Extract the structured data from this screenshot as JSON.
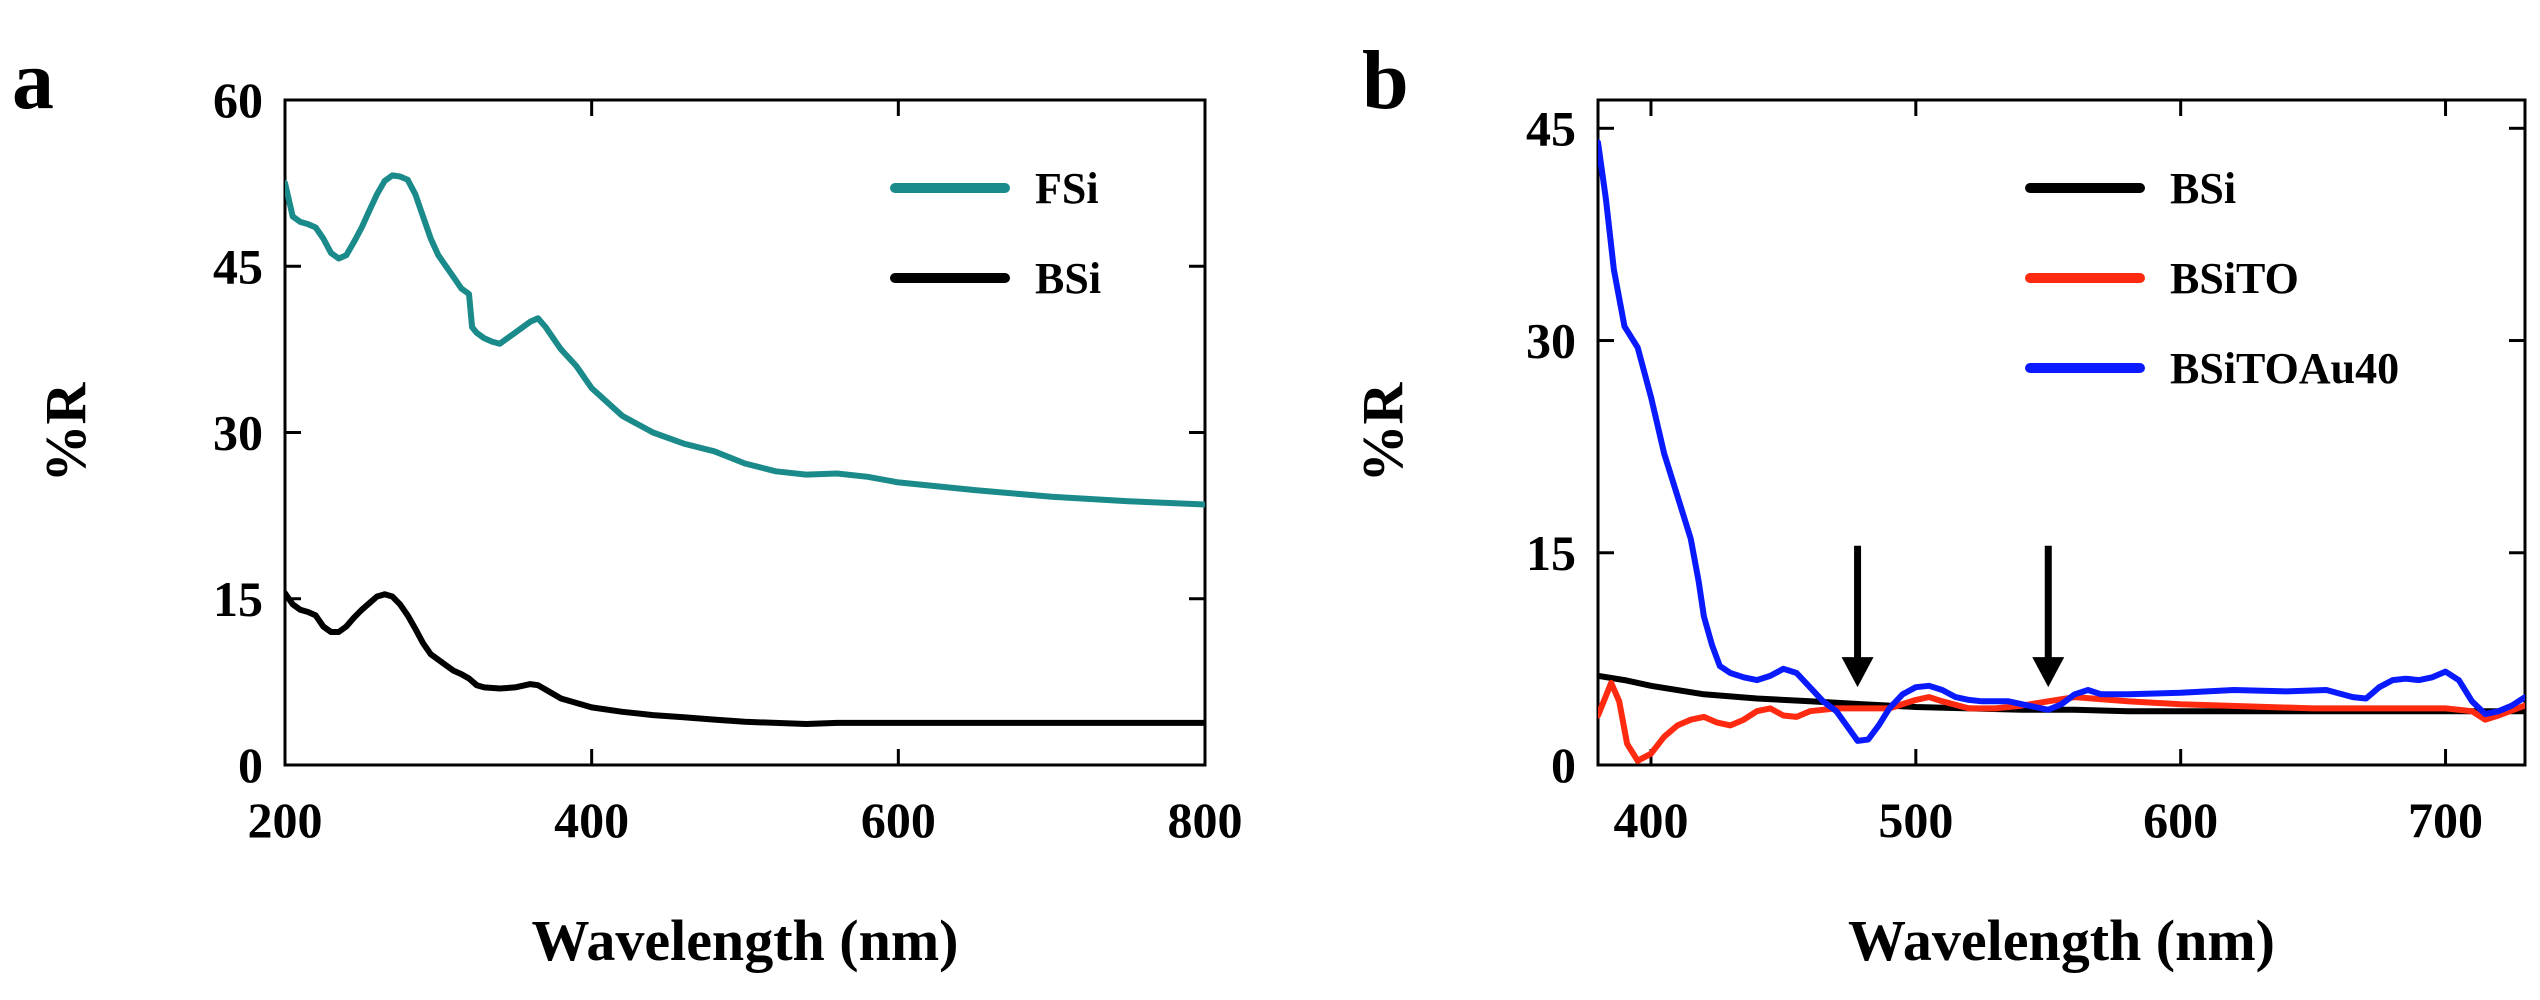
{
  "chart_data": [
    {
      "panel": "a",
      "type": "line",
      "xlabel": "Wavelength (nm)",
      "ylabel": "%R",
      "xlim": [
        200,
        800
      ],
      "ylim": [
        0,
        60
      ],
      "xticks": [
        200,
        400,
        600,
        800
      ],
      "yticks": [
        0,
        15,
        30,
        45,
        60
      ],
      "legend_position": "top-right",
      "series": [
        {
          "name": "FSi",
          "color": "#1a8a8a",
          "points": [
            [
              200,
              52.5
            ],
            [
              205,
              49.5
            ],
            [
              210,
              49
            ],
            [
              215,
              48.8
            ],
            [
              220,
              48.5
            ],
            [
              225,
              47.5
            ],
            [
              230,
              46.2
            ],
            [
              235,
              45.7
            ],
            [
              240,
              46
            ],
            [
              245,
              47.2
            ],
            [
              250,
              48.5
            ],
            [
              255,
              50
            ],
            [
              260,
              51.5
            ],
            [
              265,
              52.7
            ],
            [
              270,
              53.2
            ],
            [
              275,
              53.1
            ],
            [
              280,
              52.8
            ],
            [
              285,
              51.5
            ],
            [
              290,
              49.5
            ],
            [
              295,
              47.5
            ],
            [
              300,
              46
            ],
            [
              305,
              45
            ],
            [
              310,
              44
            ],
            [
              315,
              43
            ],
            [
              320,
              42.5
            ],
            [
              322,
              39.5
            ],
            [
              325,
              39
            ],
            [
              330,
              38.5
            ],
            [
              335,
              38.2
            ],
            [
              340,
              38
            ],
            [
              345,
              38.5
            ],
            [
              350,
              39
            ],
            [
              355,
              39.5
            ],
            [
              360,
              40
            ],
            [
              365,
              40.3
            ],
            [
              370,
              39.5
            ],
            [
              375,
              38.5
            ],
            [
              380,
              37.5
            ],
            [
              390,
              36
            ],
            [
              400,
              34
            ],
            [
              420,
              31.5
            ],
            [
              440,
              30
            ],
            [
              460,
              29
            ],
            [
              480,
              28.3
            ],
            [
              500,
              27.2
            ],
            [
              520,
              26.5
            ],
            [
              540,
              26.2
            ],
            [
              560,
              26.3
            ],
            [
              580,
              26
            ],
            [
              600,
              25.5
            ],
            [
              650,
              24.8
            ],
            [
              700,
              24.2
            ],
            [
              750,
              23.8
            ],
            [
              800,
              23.5
            ]
          ]
        },
        {
          "name": "BSi",
          "color": "#000000",
          "points": [
            [
              200,
              15.5
            ],
            [
              205,
              14.5
            ],
            [
              210,
              14
            ],
            [
              215,
              13.8
            ],
            [
              220,
              13.5
            ],
            [
              225,
              12.5
            ],
            [
              230,
              12
            ],
            [
              235,
              12
            ],
            [
              240,
              12.5
            ],
            [
              245,
              13.3
            ],
            [
              250,
              14
            ],
            [
              255,
              14.6
            ],
            [
              260,
              15.2
            ],
            [
              265,
              15.4
            ],
            [
              270,
              15.2
            ],
            [
              275,
              14.5
            ],
            [
              280,
              13.5
            ],
            [
              285,
              12.3
            ],
            [
              290,
              11
            ],
            [
              295,
              10
            ],
            [
              300,
              9.5
            ],
            [
              305,
              9
            ],
            [
              310,
              8.5
            ],
            [
              315,
              8.2
            ],
            [
              320,
              7.8
            ],
            [
              325,
              7.2
            ],
            [
              330,
              7
            ],
            [
              340,
              6.9
            ],
            [
              350,
              7
            ],
            [
              360,
              7.3
            ],
            [
              365,
              7.2
            ],
            [
              370,
              6.8
            ],
            [
              380,
              6
            ],
            [
              400,
              5.2
            ],
            [
              420,
              4.8
            ],
            [
              440,
              4.5
            ],
            [
              460,
              4.3
            ],
            [
              480,
              4.1
            ],
            [
              500,
              3.9
            ],
            [
              520,
              3.8
            ],
            [
              540,
              3.7
            ],
            [
              560,
              3.8
            ],
            [
              580,
              3.8
            ],
            [
              600,
              3.8
            ],
            [
              650,
              3.8
            ],
            [
              700,
              3.8
            ],
            [
              750,
              3.8
            ],
            [
              800,
              3.8
            ]
          ]
        }
      ]
    },
    {
      "panel": "b",
      "type": "line",
      "xlabel": "Wavelength (nm)",
      "ylabel": "%R",
      "xlim": [
        380,
        730
      ],
      "ylim": [
        0,
        47
      ],
      "xticks": [
        400,
        500,
        600,
        700
      ],
      "yticks": [
        0,
        15,
        30,
        45
      ],
      "legend_position": "top-right",
      "annotations": [
        {
          "type": "arrow-down",
          "x": 478,
          "y_from": 15.5,
          "y_to": 5.5
        },
        {
          "type": "arrow-down",
          "x": 550,
          "y_from": 15.5,
          "y_to": 5.5
        }
      ],
      "series": [
        {
          "name": "BSi",
          "color": "#000000",
          "points": [
            [
              380,
              6.3
            ],
            [
              390,
              6
            ],
            [
              400,
              5.6
            ],
            [
              420,
              5
            ],
            [
              440,
              4.7
            ],
            [
              460,
              4.5
            ],
            [
              480,
              4.3
            ],
            [
              500,
              4.1
            ],
            [
              520,
              4
            ],
            [
              540,
              3.9
            ],
            [
              560,
              3.9
            ],
            [
              580,
              3.8
            ],
            [
              600,
              3.8
            ],
            [
              650,
              3.8
            ],
            [
              700,
              3.8
            ],
            [
              730,
              3.8
            ]
          ]
        },
        {
          "name": "BSiTO",
          "color": "#ff2a10",
          "points": [
            [
              380,
              3.5
            ],
            [
              385,
              5.8
            ],
            [
              388,
              4.5
            ],
            [
              391,
              1.5
            ],
            [
              395,
              0.3
            ],
            [
              400,
              0.8
            ],
            [
              405,
              2
            ],
            [
              410,
              2.8
            ],
            [
              415,
              3.2
            ],
            [
              420,
              3.4
            ],
            [
              425,
              3
            ],
            [
              430,
              2.8
            ],
            [
              435,
              3.2
            ],
            [
              440,
              3.8
            ],
            [
              445,
              4
            ],
            [
              450,
              3.5
            ],
            [
              455,
              3.4
            ],
            [
              460,
              3.8
            ],
            [
              470,
              4
            ],
            [
              480,
              4
            ],
            [
              490,
              4
            ],
            [
              500,
              4.6
            ],
            [
              505,
              4.8
            ],
            [
              510,
              4.5
            ],
            [
              520,
              4
            ],
            [
              530,
              4
            ],
            [
              540,
              4.2
            ],
            [
              550,
              4.5
            ],
            [
              560,
              4.8
            ],
            [
              580,
              4.5
            ],
            [
              600,
              4.3
            ],
            [
              650,
              4
            ],
            [
              700,
              4
            ],
            [
              710,
              3.8
            ],
            [
              715,
              3.2
            ],
            [
              720,
              3.5
            ],
            [
              730,
              4.2
            ]
          ]
        },
        {
          "name": "BSiTOAu40",
          "color": "#0a1aff",
          "points": [
            [
              380,
              44
            ],
            [
              383,
              40
            ],
            [
              386,
              35
            ],
            [
              390,
              31
            ],
            [
              395,
              29.5
            ],
            [
              400,
              26
            ],
            [
              405,
              22
            ],
            [
              410,
              19
            ],
            [
              415,
              16
            ],
            [
              418,
              13
            ],
            [
              420,
              10.5
            ],
            [
              423,
              8.5
            ],
            [
              426,
              7
            ],
            [
              430,
              6.5
            ],
            [
              435,
              6.2
            ],
            [
              440,
              6
            ],
            [
              445,
              6.3
            ],
            [
              450,
              6.8
            ],
            [
              455,
              6.5
            ],
            [
              460,
              5.5
            ],
            [
              465,
              4.5
            ],
            [
              470,
              3.8
            ],
            [
              475,
              2.5
            ],
            [
              478,
              1.7
            ],
            [
              482,
              1.8
            ],
            [
              486,
              2.8
            ],
            [
              490,
              4
            ],
            [
              495,
              5
            ],
            [
              500,
              5.5
            ],
            [
              505,
              5.6
            ],
            [
              510,
              5.3
            ],
            [
              515,
              4.8
            ],
            [
              520,
              4.6
            ],
            [
              525,
              4.5
            ],
            [
              530,
              4.5
            ],
            [
              535,
              4.5
            ],
            [
              540,
              4.3
            ],
            [
              545,
              4.1
            ],
            [
              550,
              3.9
            ],
            [
              555,
              4.3
            ],
            [
              560,
              5
            ],
            [
              565,
              5.3
            ],
            [
              570,
              5
            ],
            [
              580,
              5
            ],
            [
              600,
              5.1
            ],
            [
              620,
              5.3
            ],
            [
              640,
              5.2
            ],
            [
              655,
              5.3
            ],
            [
              665,
              4.8
            ],
            [
              670,
              4.7
            ],
            [
              675,
              5.5
            ],
            [
              680,
              6
            ],
            [
              685,
              6.1
            ],
            [
              690,
              6
            ],
            [
              695,
              6.2
            ],
            [
              700,
              6.6
            ],
            [
              705,
              6
            ],
            [
              710,
              4.5
            ],
            [
              715,
              3.6
            ],
            [
              720,
              3.8
            ],
            [
              725,
              4.2
            ],
            [
              730,
              4.8
            ]
          ]
        }
      ]
    }
  ]
}
